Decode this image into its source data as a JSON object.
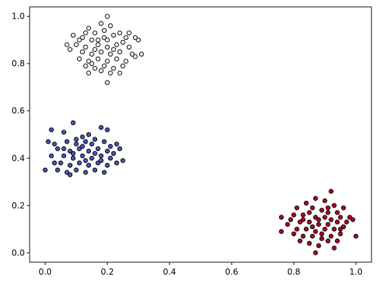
{
  "chart_data": {
    "type": "scatter",
    "title": "",
    "xlabel": "",
    "ylabel": "",
    "xlim": [
      -0.05,
      1.05
    ],
    "ylim": [
      -0.04,
      1.04
    ],
    "grid": false,
    "legend": "none",
    "marker_edge_color": "#000000",
    "x_ticks": [
      0.0,
      0.2,
      0.4,
      0.6,
      0.8,
      1.0
    ],
    "x_tick_labels": [
      "0.0",
      "0.2",
      "0.4",
      "0.6",
      "0.8",
      "1.0"
    ],
    "y_ticks": [
      0.0,
      0.2,
      0.4,
      0.6,
      0.8,
      1.0
    ],
    "y_tick_labels": [
      "0.0",
      "0.2",
      "0.4",
      "0.6",
      "0.8",
      "1.0"
    ],
    "series": [
      {
        "color": "#f0eeee",
        "points": [
          [
            0.2,
            1.0
          ],
          [
            0.18,
            0.97
          ],
          [
            0.14,
            0.95
          ],
          [
            0.16,
            0.93
          ],
          [
            0.21,
            0.96
          ],
          [
            0.24,
            0.93
          ],
          [
            0.09,
            0.92
          ],
          [
            0.12,
            0.91
          ],
          [
            0.15,
            0.9
          ],
          [
            0.19,
            0.91
          ],
          [
            0.22,
            0.92
          ],
          [
            0.26,
            0.91
          ],
          [
            0.29,
            0.91
          ],
          [
            0.07,
            0.88
          ],
          [
            0.1,
            0.88
          ],
          [
            0.13,
            0.87
          ],
          [
            0.17,
            0.88
          ],
          [
            0.2,
            0.87
          ],
          [
            0.23,
            0.88
          ],
          [
            0.27,
            0.87
          ],
          [
            0.3,
            0.9
          ],
          [
            0.12,
            0.85
          ],
          [
            0.15,
            0.84
          ],
          [
            0.18,
            0.85
          ],
          [
            0.21,
            0.84
          ],
          [
            0.24,
            0.85
          ],
          [
            0.28,
            0.84
          ],
          [
            0.31,
            0.84
          ],
          [
            0.11,
            0.82
          ],
          [
            0.14,
            0.81
          ],
          [
            0.17,
            0.82
          ],
          [
            0.2,
            0.81
          ],
          [
            0.23,
            0.82
          ],
          [
            0.26,
            0.81
          ],
          [
            0.29,
            0.83
          ],
          [
            0.13,
            0.79
          ],
          [
            0.16,
            0.78
          ],
          [
            0.19,
            0.79
          ],
          [
            0.22,
            0.78
          ],
          [
            0.25,
            0.79
          ],
          [
            0.14,
            0.76
          ],
          [
            0.18,
            0.77
          ],
          [
            0.21,
            0.76
          ],
          [
            0.24,
            0.76
          ],
          [
            0.2,
            0.72
          ],
          [
            0.17,
            0.9
          ],
          [
            0.19,
            0.94
          ],
          [
            0.16,
            0.86
          ],
          [
            0.25,
            0.89
          ],
          [
            0.11,
            0.9
          ],
          [
            0.08,
            0.86
          ],
          [
            0.27,
            0.93
          ],
          [
            0.22,
            0.86
          ],
          [
            0.15,
            0.8
          ],
          [
            0.2,
            0.9
          ],
          [
            0.13,
            0.93
          ]
        ]
      },
      {
        "color": "#4456c4",
        "points": [
          [
            0.09,
            0.55
          ],
          [
            0.02,
            0.52
          ],
          [
            0.06,
            0.51
          ],
          [
            0.12,
            0.49
          ],
          [
            0.14,
            0.5
          ],
          [
            0.18,
            0.53
          ],
          [
            0.2,
            0.52
          ],
          [
            0.01,
            0.47
          ],
          [
            0.03,
            0.46
          ],
          [
            0.07,
            0.47
          ],
          [
            0.1,
            0.48
          ],
          [
            0.13,
            0.47
          ],
          [
            0.16,
            0.48
          ],
          [
            0.19,
            0.47
          ],
          [
            0.23,
            0.46
          ],
          [
            0.04,
            0.44
          ],
          [
            0.08,
            0.43
          ],
          [
            0.11,
            0.44
          ],
          [
            0.14,
            0.43
          ],
          [
            0.17,
            0.44
          ],
          [
            0.2,
            0.43
          ],
          [
            0.24,
            0.44
          ],
          [
            0.02,
            0.41
          ],
          [
            0.06,
            0.41
          ],
          [
            0.09,
            0.4
          ],
          [
            0.12,
            0.41
          ],
          [
            0.15,
            0.4
          ],
          [
            0.18,
            0.41
          ],
          [
            0.21,
            0.4
          ],
          [
            0.25,
            0.39
          ],
          [
            0.05,
            0.38
          ],
          [
            0.08,
            0.37
          ],
          [
            0.11,
            0.38
          ],
          [
            0.14,
            0.37
          ],
          [
            0.17,
            0.38
          ],
          [
            0.2,
            0.37
          ],
          [
            0.23,
            0.38
          ],
          [
            0.0,
            0.35
          ],
          [
            0.04,
            0.35
          ],
          [
            0.07,
            0.34
          ],
          [
            0.1,
            0.35
          ],
          [
            0.13,
            0.34
          ],
          [
            0.16,
            0.35
          ],
          [
            0.19,
            0.34
          ],
          [
            0.08,
            0.33
          ],
          [
            0.12,
            0.45
          ],
          [
            0.15,
            0.46
          ],
          [
            0.09,
            0.42
          ],
          [
            0.18,
            0.39
          ],
          [
            0.06,
            0.44
          ],
          [
            0.22,
            0.42
          ],
          [
            0.13,
            0.39
          ],
          [
            0.1,
            0.46
          ],
          [
            0.16,
            0.42
          ],
          [
            0.03,
            0.38
          ],
          [
            0.21,
            0.45
          ]
        ]
      },
      {
        "color": "#b40426",
        "points": [
          [
            0.92,
            0.26
          ],
          [
            0.87,
            0.23
          ],
          [
            0.9,
            0.22
          ],
          [
            0.84,
            0.21
          ],
          [
            0.93,
            0.2
          ],
          [
            0.96,
            0.19
          ],
          [
            0.81,
            0.19
          ],
          [
            0.86,
            0.19
          ],
          [
            0.89,
            0.18
          ],
          [
            0.91,
            0.17
          ],
          [
            0.94,
            0.17
          ],
          [
            0.8,
            0.16
          ],
          [
            0.83,
            0.16
          ],
          [
            0.87,
            0.15
          ],
          [
            0.9,
            0.15
          ],
          [
            0.95,
            0.15
          ],
          [
            0.98,
            0.15
          ],
          [
            0.76,
            0.15
          ],
          [
            0.82,
            0.13
          ],
          [
            0.85,
            0.13
          ],
          [
            0.88,
            0.12
          ],
          [
            0.91,
            0.12
          ],
          [
            0.94,
            0.13
          ],
          [
            0.97,
            0.13
          ],
          [
            0.78,
            0.12
          ],
          [
            0.81,
            0.1
          ],
          [
            0.84,
            0.1
          ],
          [
            0.87,
            0.09
          ],
          [
            0.9,
            0.1
          ],
          [
            0.93,
            0.1
          ],
          [
            0.96,
            0.11
          ],
          [
            0.99,
            0.14
          ],
          [
            0.8,
            0.08
          ],
          [
            0.83,
            0.07
          ],
          [
            0.86,
            0.07
          ],
          [
            0.89,
            0.06
          ],
          [
            0.92,
            0.07
          ],
          [
            0.95,
            0.08
          ],
          [
            0.76,
            0.09
          ],
          [
            0.82,
            0.05
          ],
          [
            0.85,
            0.04
          ],
          [
            0.88,
            0.03
          ],
          [
            0.91,
            0.05
          ],
          [
            0.93,
            0.02
          ],
          [
            0.87,
            0.0
          ],
          [
            1.0,
            0.07
          ],
          [
            0.85,
            0.17
          ],
          [
            0.88,
            0.14
          ],
          [
            0.92,
            0.14
          ],
          [
            0.86,
            0.11
          ],
          [
            0.89,
            0.08
          ],
          [
            0.83,
            0.14
          ],
          [
            0.95,
            0.1
          ],
          [
            0.91,
            0.19
          ],
          [
            0.79,
            0.14
          ],
          [
            0.94,
            0.05
          ]
        ]
      }
    ]
  }
}
